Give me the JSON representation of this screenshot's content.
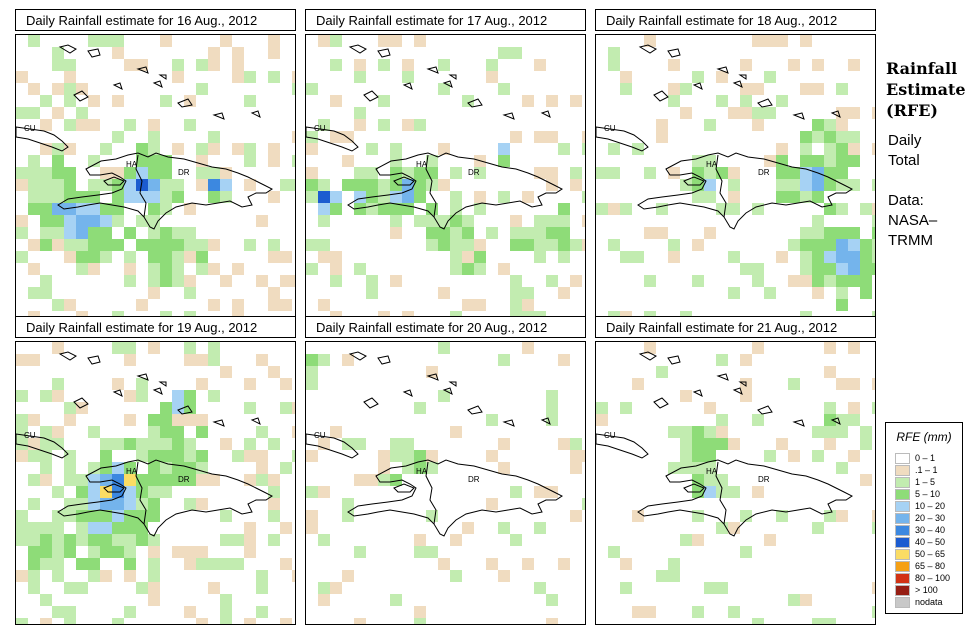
{
  "panels": [
    {
      "title": "Daily Rainfall estimate for  16 Aug., 2012"
    },
    {
      "title": "Daily Rainfall estimate for  17 Aug., 2012"
    },
    {
      "title": "Daily Rainfall estimate for  18 Aug., 2012"
    },
    {
      "title": "Daily Rainfall estimate for  19 Aug., 2012"
    },
    {
      "title": "Daily Rainfall estimate for  20 Aug., 2012"
    },
    {
      "title": "Daily Rainfall estimate for  21 Aug., 2012"
    }
  ],
  "map_labels": {
    "cuba": "CU",
    "haiti": "HA",
    "dominican_republic": "DR"
  },
  "side": {
    "title_lines": [
      "Rainfall",
      "Estimate",
      "(RFE)"
    ],
    "subtitle_lines": [
      "Daily",
      "Total"
    ],
    "source_lines": [
      "Data:",
      "NASA–",
      "TRMM"
    ]
  },
  "legend": {
    "title": "RFE (mm)",
    "items": [
      {
        "label": "0 – 1",
        "color": "#ffffff"
      },
      {
        "label": ".1 – 1",
        "color": "#f0dcc0"
      },
      {
        "label": "1 – 5",
        "color": "#c2ecb0"
      },
      {
        "label": "5 – 10",
        "color": "#8edc78"
      },
      {
        "label": "10 – 20",
        "color": "#a6d2f4"
      },
      {
        "label": "20 – 30",
        "color": "#74b4ec"
      },
      {
        "label": "30 – 40",
        "color": "#3c88e0"
      },
      {
        "label": "40 – 50",
        "color": "#1c5cd0"
      },
      {
        "label": "50 – 65",
        "color": "#fadc64"
      },
      {
        "label": "65 – 80",
        "color": "#f5a014"
      },
      {
        "label": "80 – 100",
        "color": "#d23214"
      },
      {
        "label": "> 100",
        "color": "#961e14"
      },
      {
        "label": "nodata",
        "color": "#c8c8c8"
      }
    ]
  }
}
